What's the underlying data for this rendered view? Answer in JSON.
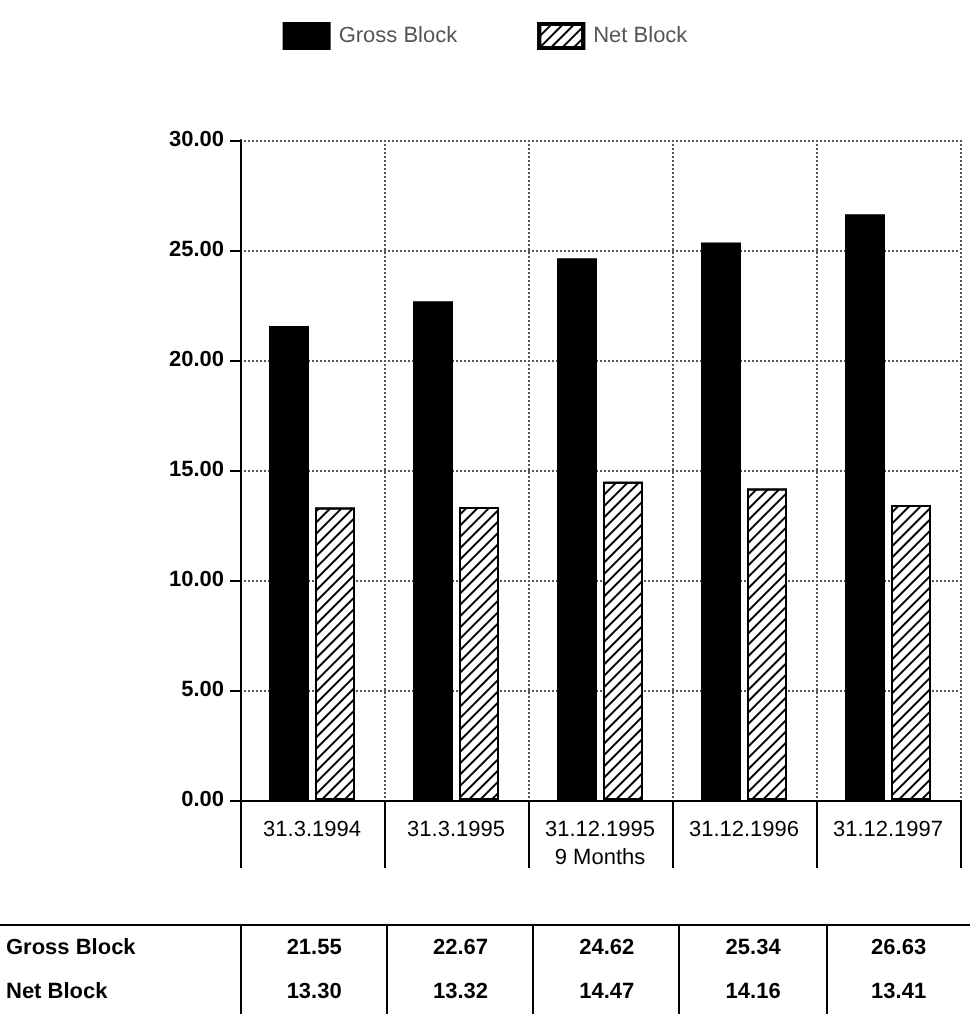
{
  "chart_data": {
    "type": "bar",
    "categories": [
      "31.3.1994",
      "31.3.1995",
      "31.12.1995\n9 Months",
      "31.12.1996",
      "31.12.1997"
    ],
    "series": [
      {
        "name": "Gross Block",
        "color": "#000000",
        "values": [
          21.55,
          22.67,
          24.62,
          25.34,
          26.63
        ],
        "value_labels": [
          "21.55",
          "22.67",
          "24.62",
          "25.34",
          "26.63"
        ]
      },
      {
        "name": "Net Block",
        "color": "#ffffff",
        "values": [
          13.3,
          13.32,
          14.47,
          14.16,
          13.41
        ],
        "value_labels": [
          "13.30",
          "13.32",
          "14.47",
          "14.16",
          "13.41"
        ]
      }
    ],
    "ylim": [
      0,
      30
    ],
    "yticks": [
      {
        "value": 0,
        "label": "0.00"
      },
      {
        "value": 5,
        "label": "5.00"
      },
      {
        "value": 10,
        "label": "10.00"
      },
      {
        "value": 15,
        "label": "15.00"
      },
      {
        "value": 20,
        "label": "20.00"
      },
      {
        "value": 25,
        "label": "25.00"
      },
      {
        "value": 30,
        "label": "30.00"
      }
    ],
    "grid": true,
    "legend": "top"
  }
}
